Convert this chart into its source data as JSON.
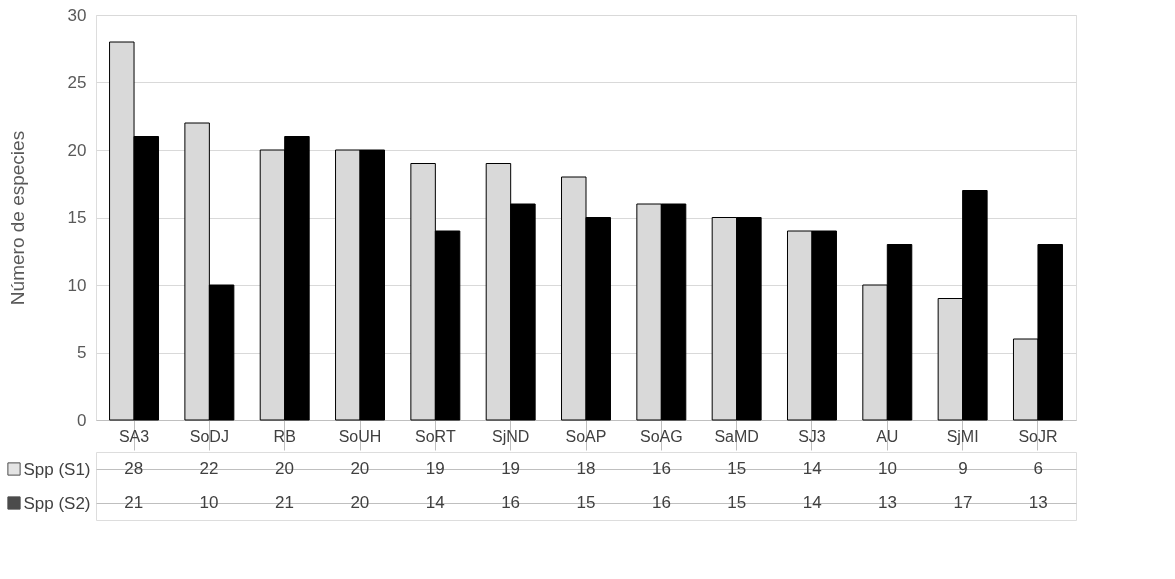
{
  "chart_data": {
    "type": "bar",
    "ylabel": "Número de especies",
    "categories": [
      "SA3",
      "SoDJ",
      "RB",
      "SoUH",
      "SoRT",
      "SjND",
      "SoAP",
      "SoAG",
      "SaMD",
      "SJ3",
      "AU",
      "SjMI",
      "SoJR"
    ],
    "series": [
      {
        "name": "Spp (S1)",
        "color": "#d9d9d9",
        "values": [
          28,
          22,
          20,
          20,
          19,
          19,
          18,
          16,
          15,
          14,
          10,
          9,
          6
        ]
      },
      {
        "name": "Spp (S2)",
        "color": "#000000",
        "values": [
          21,
          10,
          21,
          20,
          14,
          16,
          15,
          16,
          15,
          14,
          13,
          17,
          13
        ]
      }
    ],
    "ylim": [
      0,
      30
    ],
    "yticks": [
      0,
      5,
      10,
      15,
      20,
      25,
      30
    ],
    "grid": "y",
    "legend": "bottom left",
    "data_labels": true
  }
}
